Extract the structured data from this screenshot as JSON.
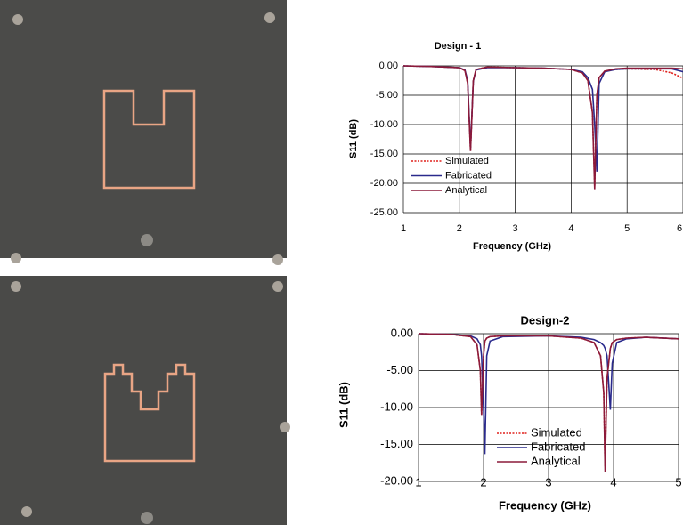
{
  "chart_data": [
    {
      "type": "line",
      "title": "Design - 1",
      "x_label": "Frequency (GHz)",
      "y_label": "S11 (dB)",
      "x": [
        1,
        1.5,
        2,
        2.1,
        2.15,
        2.2,
        2.25,
        2.3,
        2.5,
        3,
        3.5,
        4,
        4.2,
        4.3,
        4.38,
        4.42,
        4.46,
        4.5,
        4.6,
        4.8,
        5,
        5.5,
        5.8,
        6
      ],
      "series": [
        {
          "name": "Simulated",
          "color": "#e0201c",
          "values": [
            0,
            -0.1,
            -0.3,
            -0.8,
            -3,
            -14.5,
            -2.5,
            -0.6,
            -0.2,
            -0.3,
            -0.4,
            -0.6,
            -1.2,
            -2.5,
            -8,
            -20.5,
            -5,
            -2,
            -0.9,
            -0.6,
            -0.5,
            -0.6,
            -1.2,
            -2.1
          ]
        },
        {
          "name": "Fabricated",
          "color": "#2a2a8c",
          "values": [
            0,
            -0.1,
            -0.3,
            -0.7,
            -2.5,
            -14,
            -2.6,
            -0.7,
            -0.3,
            -0.3,
            -0.4,
            -0.6,
            -1,
            -2,
            -4,
            -10,
            -18,
            -3,
            -1,
            -0.6,
            -0.5,
            -0.5,
            -0.5,
            -1
          ]
        },
        {
          "name": "Analytical",
          "color": "#8b1a3a",
          "values": [
            0,
            -0.1,
            -0.3,
            -0.8,
            -3,
            -14.5,
            -2.5,
            -0.6,
            -0.2,
            -0.3,
            -0.4,
            -0.6,
            -1.2,
            -2.5,
            -8,
            -21,
            -5,
            -2,
            -0.9,
            -0.5,
            -0.4,
            -0.4,
            -0.4,
            -0.5
          ]
        }
      ],
      "xlim": [
        1,
        6
      ],
      "xticks": [
        1,
        2,
        3,
        4,
        5,
        6
      ],
      "ylim": [
        -25,
        0
      ],
      "yticks": [
        {
          "value": -25,
          "label": "-25.00"
        },
        {
          "value": -20,
          "label": "-20.00"
        },
        {
          "value": -15,
          "label": "-15.00"
        },
        {
          "value": -10,
          "label": "-10.00"
        },
        {
          "value": -5,
          "label": "-5.00"
        },
        {
          "value": 0,
          "label": "0.00"
        }
      ],
      "grid": true
    },
    {
      "type": "line",
      "title": "Design-2",
      "x_label": "Frequency (GHz)",
      "y_label": "S11 (dB)",
      "x": [
        1,
        1.5,
        1.8,
        1.9,
        1.95,
        1.97,
        2,
        2.02,
        2.05,
        2.1,
        2.3,
        3,
        3.5,
        3.7,
        3.8,
        3.85,
        3.87,
        3.9,
        3.95,
        3.98,
        4.05,
        4.2,
        4.5,
        5
      ],
      "series": [
        {
          "name": "Simulated",
          "color": "#e0201c",
          "values": [
            0,
            -0.1,
            -0.4,
            -1.5,
            -5,
            -11,
            -3,
            -1,
            -0.6,
            -0.4,
            -0.3,
            -0.3,
            -0.6,
            -1.2,
            -3,
            -8,
            -18,
            -6,
            -2,
            -1.2,
            -0.8,
            -0.6,
            -0.5,
            -0.7
          ]
        },
        {
          "name": "Fabricated",
          "color": "#2a2a8c",
          "values": [
            0,
            -0.1,
            -0.3,
            -0.7,
            -1.5,
            -3,
            -10,
            -16.3,
            -3,
            -1,
            -0.4,
            -0.3,
            -0.5,
            -0.8,
            -1.2,
            -1.6,
            -2,
            -3,
            -10.3,
            -4,
            -1.2,
            -0.7,
            -0.5,
            -0.7
          ]
        },
        {
          "name": "Analytical",
          "color": "#8b1a3a",
          "values": [
            0,
            -0.1,
            -0.4,
            -1.5,
            -5,
            -11,
            -3,
            -1,
            -0.6,
            -0.4,
            -0.3,
            -0.3,
            -0.6,
            -1.2,
            -3,
            -8,
            -18.7,
            -6,
            -2,
            -1.2,
            -0.8,
            -0.6,
            -0.5,
            -0.7
          ]
        }
      ],
      "xlim": [
        1,
        5
      ],
      "xticks": [
        1,
        2,
        3,
        4,
        5
      ],
      "ylim": [
        -20,
        0
      ],
      "yticks": [
        {
          "value": -20,
          "label": "-20.00"
        },
        {
          "value": -15,
          "label": "-15.00"
        },
        {
          "value": -10,
          "label": "-10.00"
        },
        {
          "value": -5,
          "label": "-5.00"
        },
        {
          "value": 0,
          "label": "0.00"
        }
      ],
      "grid": true
    }
  ]
}
